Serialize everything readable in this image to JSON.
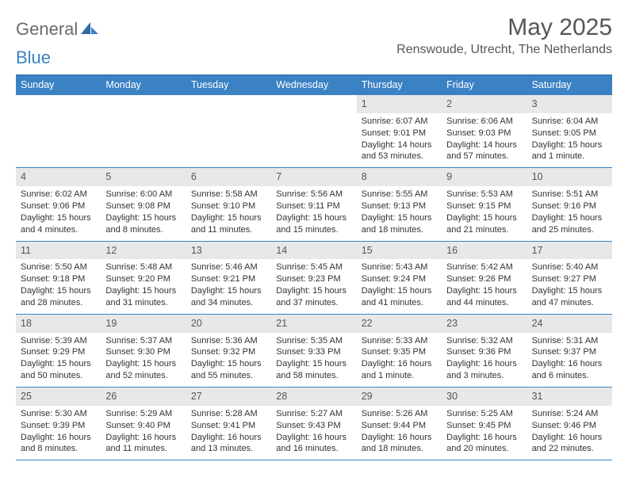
{
  "logo": {
    "text_gray": "General",
    "text_blue": "Blue"
  },
  "title": "May 2025",
  "location": "Renswoude, Utrecht, The Netherlands",
  "weekdays": [
    "Sunday",
    "Monday",
    "Tuesday",
    "Wednesday",
    "Thursday",
    "Friday",
    "Saturday"
  ],
  "colors": {
    "header_bg": "#3b82c4",
    "header_text": "#ffffff",
    "daynum_bg": "#e8e8e8",
    "rule": "#3b82c4",
    "title_color": "#565656",
    "body_text": "#333333"
  },
  "weeks": [
    [
      {
        "n": "",
        "sr": "",
        "ss": "",
        "dl": ""
      },
      {
        "n": "",
        "sr": "",
        "ss": "",
        "dl": ""
      },
      {
        "n": "",
        "sr": "",
        "ss": "",
        "dl": ""
      },
      {
        "n": "",
        "sr": "",
        "ss": "",
        "dl": ""
      },
      {
        "n": "1",
        "sr": "Sunrise: 6:07 AM",
        "ss": "Sunset: 9:01 PM",
        "dl": "Daylight: 14 hours and 53 minutes."
      },
      {
        "n": "2",
        "sr": "Sunrise: 6:06 AM",
        "ss": "Sunset: 9:03 PM",
        "dl": "Daylight: 14 hours and 57 minutes."
      },
      {
        "n": "3",
        "sr": "Sunrise: 6:04 AM",
        "ss": "Sunset: 9:05 PM",
        "dl": "Daylight: 15 hours and 1 minute."
      }
    ],
    [
      {
        "n": "4",
        "sr": "Sunrise: 6:02 AM",
        "ss": "Sunset: 9:06 PM",
        "dl": "Daylight: 15 hours and 4 minutes."
      },
      {
        "n": "5",
        "sr": "Sunrise: 6:00 AM",
        "ss": "Sunset: 9:08 PM",
        "dl": "Daylight: 15 hours and 8 minutes."
      },
      {
        "n": "6",
        "sr": "Sunrise: 5:58 AM",
        "ss": "Sunset: 9:10 PM",
        "dl": "Daylight: 15 hours and 11 minutes."
      },
      {
        "n": "7",
        "sr": "Sunrise: 5:56 AM",
        "ss": "Sunset: 9:11 PM",
        "dl": "Daylight: 15 hours and 15 minutes."
      },
      {
        "n": "8",
        "sr": "Sunrise: 5:55 AM",
        "ss": "Sunset: 9:13 PM",
        "dl": "Daylight: 15 hours and 18 minutes."
      },
      {
        "n": "9",
        "sr": "Sunrise: 5:53 AM",
        "ss": "Sunset: 9:15 PM",
        "dl": "Daylight: 15 hours and 21 minutes."
      },
      {
        "n": "10",
        "sr": "Sunrise: 5:51 AM",
        "ss": "Sunset: 9:16 PM",
        "dl": "Daylight: 15 hours and 25 minutes."
      }
    ],
    [
      {
        "n": "11",
        "sr": "Sunrise: 5:50 AM",
        "ss": "Sunset: 9:18 PM",
        "dl": "Daylight: 15 hours and 28 minutes."
      },
      {
        "n": "12",
        "sr": "Sunrise: 5:48 AM",
        "ss": "Sunset: 9:20 PM",
        "dl": "Daylight: 15 hours and 31 minutes."
      },
      {
        "n": "13",
        "sr": "Sunrise: 5:46 AM",
        "ss": "Sunset: 9:21 PM",
        "dl": "Daylight: 15 hours and 34 minutes."
      },
      {
        "n": "14",
        "sr": "Sunrise: 5:45 AM",
        "ss": "Sunset: 9:23 PM",
        "dl": "Daylight: 15 hours and 37 minutes."
      },
      {
        "n": "15",
        "sr": "Sunrise: 5:43 AM",
        "ss": "Sunset: 9:24 PM",
        "dl": "Daylight: 15 hours and 41 minutes."
      },
      {
        "n": "16",
        "sr": "Sunrise: 5:42 AM",
        "ss": "Sunset: 9:26 PM",
        "dl": "Daylight: 15 hours and 44 minutes."
      },
      {
        "n": "17",
        "sr": "Sunrise: 5:40 AM",
        "ss": "Sunset: 9:27 PM",
        "dl": "Daylight: 15 hours and 47 minutes."
      }
    ],
    [
      {
        "n": "18",
        "sr": "Sunrise: 5:39 AM",
        "ss": "Sunset: 9:29 PM",
        "dl": "Daylight: 15 hours and 50 minutes."
      },
      {
        "n": "19",
        "sr": "Sunrise: 5:37 AM",
        "ss": "Sunset: 9:30 PM",
        "dl": "Daylight: 15 hours and 52 minutes."
      },
      {
        "n": "20",
        "sr": "Sunrise: 5:36 AM",
        "ss": "Sunset: 9:32 PM",
        "dl": "Daylight: 15 hours and 55 minutes."
      },
      {
        "n": "21",
        "sr": "Sunrise: 5:35 AM",
        "ss": "Sunset: 9:33 PM",
        "dl": "Daylight: 15 hours and 58 minutes."
      },
      {
        "n": "22",
        "sr": "Sunrise: 5:33 AM",
        "ss": "Sunset: 9:35 PM",
        "dl": "Daylight: 16 hours and 1 minute."
      },
      {
        "n": "23",
        "sr": "Sunrise: 5:32 AM",
        "ss": "Sunset: 9:36 PM",
        "dl": "Daylight: 16 hours and 3 minutes."
      },
      {
        "n": "24",
        "sr": "Sunrise: 5:31 AM",
        "ss": "Sunset: 9:37 PM",
        "dl": "Daylight: 16 hours and 6 minutes."
      }
    ],
    [
      {
        "n": "25",
        "sr": "Sunrise: 5:30 AM",
        "ss": "Sunset: 9:39 PM",
        "dl": "Daylight: 16 hours and 8 minutes."
      },
      {
        "n": "26",
        "sr": "Sunrise: 5:29 AM",
        "ss": "Sunset: 9:40 PM",
        "dl": "Daylight: 16 hours and 11 minutes."
      },
      {
        "n": "27",
        "sr": "Sunrise: 5:28 AM",
        "ss": "Sunset: 9:41 PM",
        "dl": "Daylight: 16 hours and 13 minutes."
      },
      {
        "n": "28",
        "sr": "Sunrise: 5:27 AM",
        "ss": "Sunset: 9:43 PM",
        "dl": "Daylight: 16 hours and 16 minutes."
      },
      {
        "n": "29",
        "sr": "Sunrise: 5:26 AM",
        "ss": "Sunset: 9:44 PM",
        "dl": "Daylight: 16 hours and 18 minutes."
      },
      {
        "n": "30",
        "sr": "Sunrise: 5:25 AM",
        "ss": "Sunset: 9:45 PM",
        "dl": "Daylight: 16 hours and 20 minutes."
      },
      {
        "n": "31",
        "sr": "Sunrise: 5:24 AM",
        "ss": "Sunset: 9:46 PM",
        "dl": "Daylight: 16 hours and 22 minutes."
      }
    ]
  ]
}
